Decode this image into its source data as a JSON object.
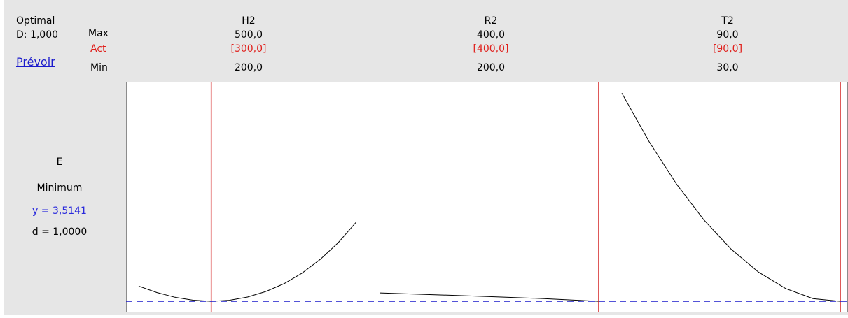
{
  "header": {
    "optimal_label": "Optimal",
    "d_label": "D: 1,000",
    "predict_link": "Prévoir",
    "max_label": "Max",
    "act_label": "Act",
    "min_label": "Min"
  },
  "factors": [
    {
      "name": "H2",
      "max": "500,0",
      "act": "[300,0]",
      "min": "200,0"
    },
    {
      "name": "R2",
      "max": "400,0",
      "act": "[400,0]",
      "min": "200,0"
    },
    {
      "name": "T2",
      "max": "90,0",
      "act": "[90,0]",
      "min": "30,0"
    }
  ],
  "response": {
    "name": "E",
    "goal": "Minimum",
    "y_text": "y = 3,5141",
    "d_text": "d = 1,0000"
  },
  "colors": {
    "current_setting_line": "#d42020",
    "reference_line": "#1a1acc",
    "curve": "#000000"
  },
  "chart_data": {
    "type": "line",
    "reference_y": 3.5141,
    "panels": [
      {
        "factor": "H2",
        "xlim": [
          200,
          500
        ],
        "current_x": 300,
        "x": [
          200,
          225,
          250,
          275,
          300,
          325,
          350,
          375,
          400,
          425,
          450,
          475,
          500
        ],
        "y": [
          5.17,
          4.47,
          3.95,
          3.63,
          3.51,
          3.62,
          3.97,
          4.57,
          5.42,
          6.58,
          8.07,
          9.91,
          12.17
        ]
      },
      {
        "factor": "R2",
        "xlim": [
          200,
          400
        ],
        "current_x": 400,
        "x": [
          200,
          250,
          300,
          350,
          400
        ],
        "y": [
          4.42,
          4.22,
          4.02,
          3.8,
          3.51
        ]
      },
      {
        "factor": "T2",
        "xlim": [
          30,
          90
        ],
        "current_x": 90,
        "x": [
          30,
          37.5,
          45,
          52.5,
          60,
          67.5,
          75,
          82.5,
          90
        ],
        "y": [
          26.2,
          20.9,
          16.3,
          12.4,
          9.2,
          6.7,
          4.9,
          3.8,
          3.51
        ]
      }
    ]
  }
}
